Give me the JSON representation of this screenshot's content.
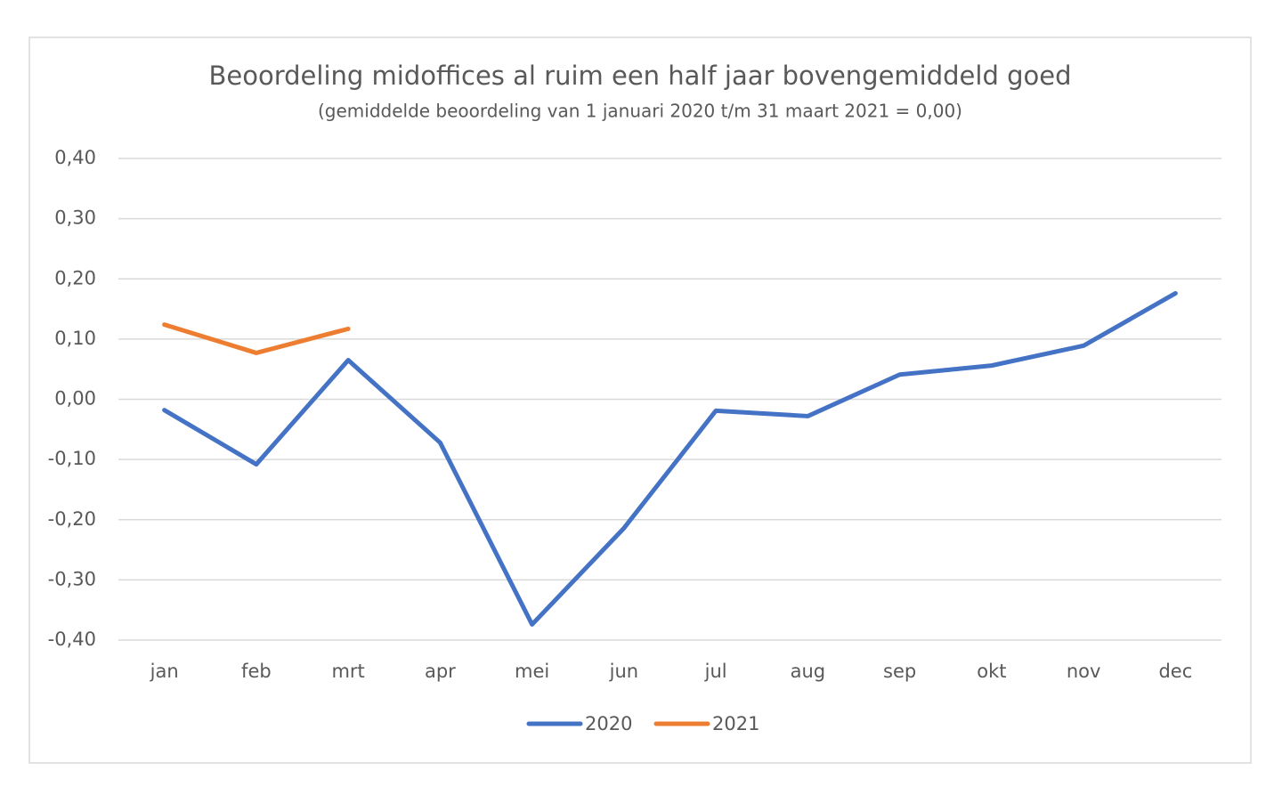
{
  "chart_data": {
    "type": "line",
    "title": "Beoordeling midoffices al ruim een half jaar bovengemiddeld goed",
    "subtitle": "(gemiddelde beoordeling van 1 januari 2020 t/m 31 maart 2021 = 0,00)",
    "categories": [
      "jan",
      "feb",
      "mrt",
      "apr",
      "mei",
      "jun",
      "jul",
      "aug",
      "sep",
      "okt",
      "nov",
      "dec"
    ],
    "series": [
      {
        "name": "2020",
        "color": "#4472c4",
        "values": [
          -0.018,
          -0.108,
          0.065,
          -0.072,
          -0.374,
          -0.214,
          -0.019,
          -0.028,
          0.041,
          0.056,
          0.089,
          0.176
        ]
      },
      {
        "name": "2021",
        "color": "#ed7d31",
        "values": [
          0.124,
          0.077,
          0.117,
          null,
          null,
          null,
          null,
          null,
          null,
          null,
          null,
          null
        ]
      }
    ],
    "ylim": [
      -0.4,
      0.4
    ],
    "yticks": [
      {
        "value": -0.4,
        "label": "-0,40"
      },
      {
        "value": -0.3,
        "label": "-0,30"
      },
      {
        "value": -0.2,
        "label": "-0,20"
      },
      {
        "value": -0.1,
        "label": "-0,10"
      },
      {
        "value": 0,
        "label": "0,00"
      },
      {
        "value": 0.1,
        "label": "0,10"
      },
      {
        "value": 0.2,
        "label": "0,20"
      },
      {
        "value": 0.3,
        "label": "0,30"
      },
      {
        "value": 0.4,
        "label": "0,40"
      }
    ],
    "grid": true,
    "legend": "bottom"
  }
}
